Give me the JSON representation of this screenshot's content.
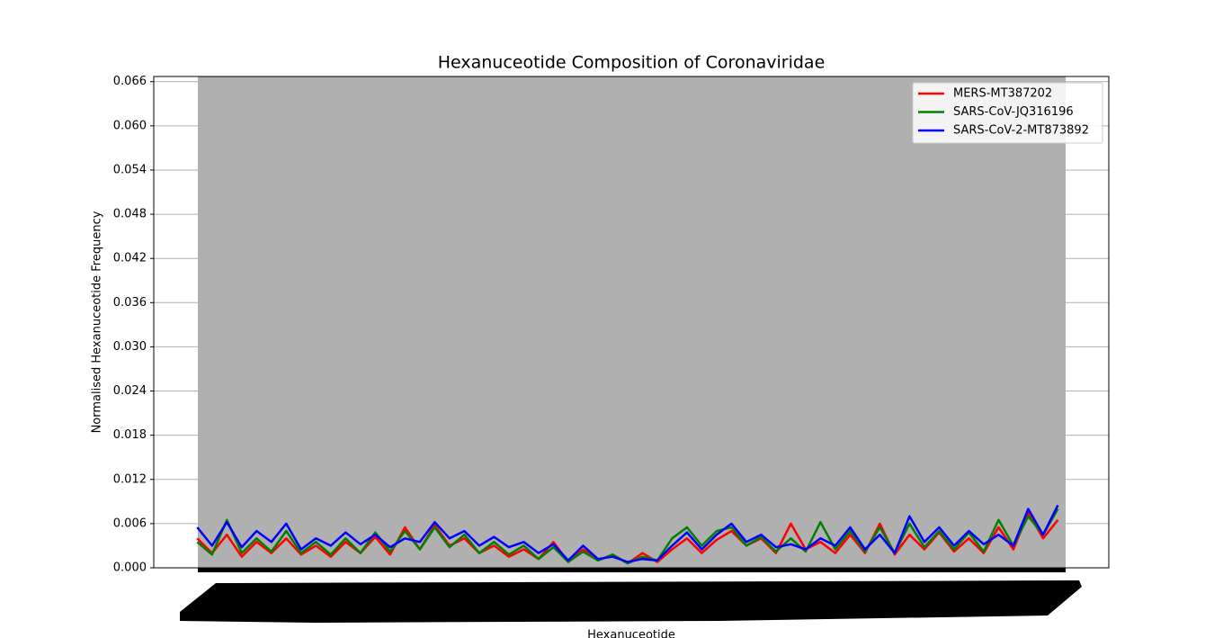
{
  "chart_data": {
    "type": "line",
    "title": "Hexanuceotide Composition of Coronaviridae",
    "xlabel": "Hexanuceotide",
    "ylabel": "Normalised Hexanuceotide Frequency",
    "x": [
      0,
      70,
      140,
      210,
      280,
      350,
      420,
      490,
      560,
      630,
      700,
      770,
      840,
      910,
      980,
      1050,
      1120,
      1190,
      1260,
      1330,
      1400,
      1470,
      1540,
      1610,
      1680,
      1750,
      1820,
      1890,
      1960,
      2030,
      2100,
      2170,
      2240,
      2310,
      2380,
      2450,
      2520,
      2590,
      2660,
      2730,
      2800,
      2870,
      2940,
      3010,
      3080,
      3150,
      3220,
      3290,
      3360,
      3430,
      3500,
      3570,
      3640,
      3710,
      3780,
      3850,
      3920,
      3990,
      4060
    ],
    "xlim": [
      -205,
      4300
    ],
    "ylim": [
      0,
      0.0667
    ],
    "yticks": [
      {
        "value": 0,
        "label": "0.000"
      },
      {
        "value": 0.006,
        "label": "0.006"
      },
      {
        "value": 0.012,
        "label": "0.012"
      },
      {
        "value": 0.018,
        "label": "0.018"
      },
      {
        "value": 0.024,
        "label": "0.024"
      },
      {
        "value": 0.03,
        "label": "0.030"
      },
      {
        "value": 0.036,
        "label": "0.036"
      },
      {
        "value": 0.042,
        "label": "0.042"
      },
      {
        "value": 0.048,
        "label": "0.048"
      },
      {
        "value": 0.054,
        "label": "0.054"
      },
      {
        "value": 0.06,
        "label": "0.060"
      },
      {
        "value": 0.066,
        "label": "0.066"
      }
    ],
    "grid": true,
    "legend": "upper right",
    "series": [
      {
        "name": "MERS-MT387202",
        "color": "#ff0000",
        "values": [
          0.004,
          0.002,
          0.0045,
          0.0015,
          0.0035,
          0.002,
          0.004,
          0.0018,
          0.003,
          0.0015,
          0.0035,
          0.002,
          0.0042,
          0.0018,
          0.0055,
          0.0025,
          0.0058,
          0.003,
          0.004,
          0.002,
          0.003,
          0.0015,
          0.0025,
          0.0012,
          0.0035,
          0.0008,
          0.0025,
          0.001,
          0.0018,
          0.0006,
          0.002,
          0.0008,
          0.0025,
          0.004,
          0.002,
          0.0038,
          0.005,
          0.003,
          0.004,
          0.002,
          0.006,
          0.0025,
          0.0035,
          0.002,
          0.0045,
          0.002,
          0.006,
          0.0018,
          0.0045,
          0.0025,
          0.0048,
          0.0022,
          0.004,
          0.002,
          0.0055,
          0.0025,
          0.0075,
          0.004,
          0.0065
        ]
      },
      {
        "name": "SARS-CoV-JQ316196",
        "color": "#008000",
        "values": [
          0.0035,
          0.0018,
          0.0065,
          0.002,
          0.004,
          0.0022,
          0.005,
          0.002,
          0.0035,
          0.0018,
          0.004,
          0.002,
          0.0048,
          0.0022,
          0.005,
          0.0025,
          0.0055,
          0.0028,
          0.0045,
          0.002,
          0.0035,
          0.0018,
          0.003,
          0.0012,
          0.0028,
          0.0008,
          0.0022,
          0.001,
          0.0018,
          0.0006,
          0.0015,
          0.001,
          0.004,
          0.0055,
          0.003,
          0.005,
          0.0055,
          0.003,
          0.0042,
          0.0022,
          0.004,
          0.0022,
          0.0062,
          0.0025,
          0.005,
          0.0022,
          0.0055,
          0.002,
          0.006,
          0.0028,
          0.005,
          0.0025,
          0.0048,
          0.0022,
          0.0065,
          0.003,
          0.007,
          0.0045,
          0.008
        ]
      },
      {
        "name": "SARS-CoV-2-MT873892",
        "color": "#0000ff",
        "values": [
          0.0055,
          0.003,
          0.0062,
          0.0028,
          0.005,
          0.0035,
          0.006,
          0.0025,
          0.004,
          0.003,
          0.0048,
          0.0032,
          0.0045,
          0.0028,
          0.004,
          0.0035,
          0.0062,
          0.004,
          0.005,
          0.003,
          0.0042,
          0.0028,
          0.0035,
          0.002,
          0.0032,
          0.001,
          0.003,
          0.0012,
          0.0015,
          0.0008,
          0.0012,
          0.001,
          0.003,
          0.0048,
          0.0025,
          0.0045,
          0.006,
          0.0035,
          0.0045,
          0.0028,
          0.0032,
          0.0025,
          0.004,
          0.003,
          0.0055,
          0.0025,
          0.0045,
          0.002,
          0.007,
          0.0035,
          0.0055,
          0.003,
          0.005,
          0.0032,
          0.0045,
          0.003,
          0.008,
          0.0045,
          0.0085
        ]
      }
    ]
  }
}
